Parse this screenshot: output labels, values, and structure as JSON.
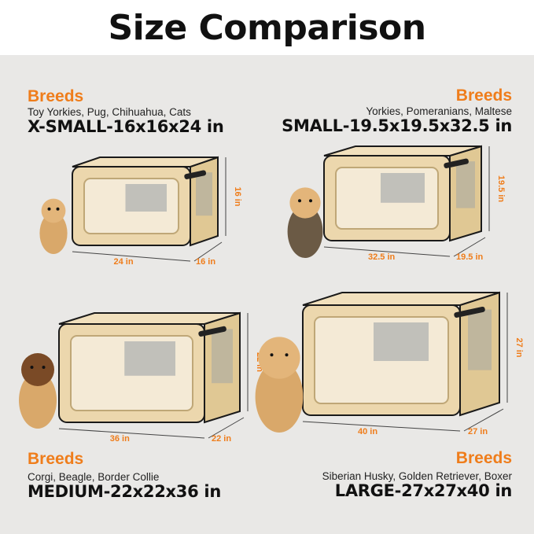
{
  "title": "Size Comparison",
  "colors": {
    "accent": "#ef7d1b",
    "crate": "#ecd7ad",
    "trim": "#1a1a1a",
    "background": "#e9e8e6"
  },
  "sizes": [
    {
      "breeds_label": "Breeds",
      "breeds": "Toy Yorkies, Pug, Chihuahua, Cats",
      "size": "X-SMALL-16x16x24 in",
      "dims": {
        "height": "16 in",
        "length": "24 in",
        "width": "16 in"
      },
      "pet": "cat"
    },
    {
      "breeds_label": "Breeds",
      "breeds": "Yorkies, Pomeranians, Maltese",
      "size": "SMALL-19.5x19.5x32.5 in",
      "dims": {
        "height": "19.5 in",
        "length": "32.5 in",
        "width": "19.5 in"
      },
      "pet": "yorkie"
    },
    {
      "breeds_label": "Breeds",
      "breeds": "Corgi, Beagle, Border Collie",
      "size": "MEDIUM-22x22x36 in",
      "dims": {
        "height": "22 in",
        "length": "36 in",
        "width": "22 in"
      },
      "pet": "beagle"
    },
    {
      "breeds_label": "Breeds",
      "breeds": "Siberian Husky, Golden Retriever, Boxer",
      "size": "LARGE-27x27x40 in",
      "dims": {
        "height": "27 in",
        "length": "40 in",
        "width": "27 in"
      },
      "pet": "golden-retriever"
    }
  ]
}
